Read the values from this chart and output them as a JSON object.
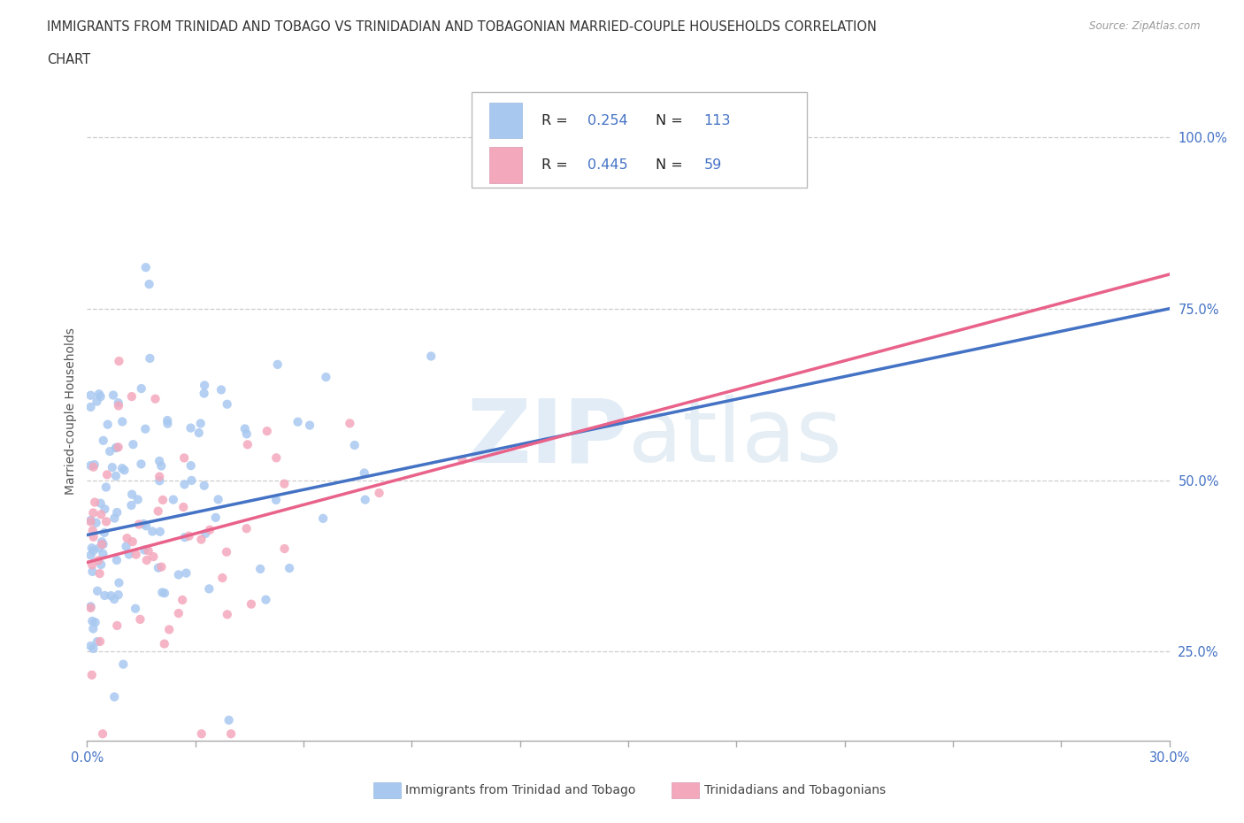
{
  "title_line1": "IMMIGRANTS FROM TRINIDAD AND TOBAGO VS TRINIDADIAN AND TOBAGONIAN MARRIED-COUPLE HOUSEHOLDS CORRELATION",
  "title_line2": "CHART",
  "source": "Source: ZipAtlas.com",
  "ylabel": "Married-couple Households",
  "xlim": [
    0.0,
    0.3
  ],
  "ylim": [
    0.12,
    1.08
  ],
  "ytick_positions": [
    0.25,
    0.5,
    0.75,
    1.0
  ],
  "ytick_labels": [
    "25.0%",
    "50.0%",
    "75.0%",
    "100.0%"
  ],
  "blue_R": 0.254,
  "blue_N": 113,
  "pink_R": 0.445,
  "pink_N": 59,
  "blue_color": "#A8C8F0",
  "pink_color": "#F4A8BC",
  "blue_line_color": "#4472C4",
  "pink_line_color": "#E8628A",
  "legend_label_blue": "Immigrants from Trinidad and Tobago",
  "legend_label_pink": "Trinidadians and Tobagonians",
  "blue_seed": 42,
  "pink_seed": 17,
  "blue_line_y0": 0.42,
  "blue_line_y1": 0.75,
  "pink_line_y0": 0.38,
  "pink_line_y1": 0.8
}
